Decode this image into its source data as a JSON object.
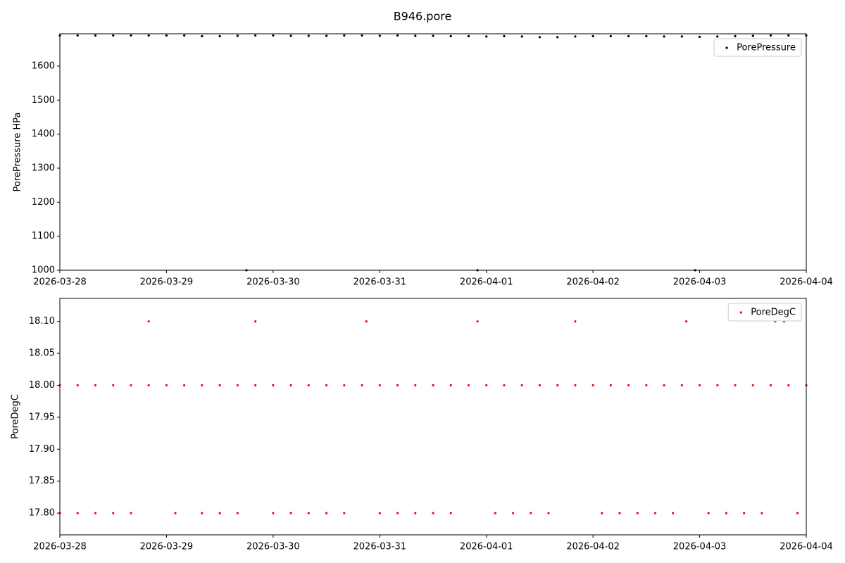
{
  "chart_data": [
    {
      "type": "scatter",
      "title": "B946.pore",
      "ylabel": "PorePressure HPa",
      "legend": "upper right",
      "xlim": [
        "2026-03-28",
        "2026-04-04"
      ],
      "xticks": [
        "2026-03-28",
        "2026-03-29",
        "2026-03-30",
        "2026-03-31",
        "2026-04-01",
        "2026-04-02",
        "2026-04-03",
        "2026-04-04"
      ],
      "ylim": [
        1000,
        1695
      ],
      "yticks": [
        1000,
        1100,
        1200,
        1300,
        1400,
        1500,
        1600
      ],
      "x": [
        "2026-03-28 00:00",
        "2026-03-28 04:00",
        "2026-03-28 08:00",
        "2026-03-28 12:00",
        "2026-03-28 16:00",
        "2026-03-28 20:00",
        "2026-03-29 00:00",
        "2026-03-29 04:00",
        "2026-03-29 08:00",
        "2026-03-29 12:00",
        "2026-03-29 16:00",
        "2026-03-29 20:00",
        "2026-03-30 00:00",
        "2026-03-30 04:00",
        "2026-03-30 08:00",
        "2026-03-30 12:00",
        "2026-03-30 16:00",
        "2026-03-30 20:00",
        "2026-03-31 00:00",
        "2026-03-31 04:00",
        "2026-03-31 08:00",
        "2026-03-31 12:00",
        "2026-03-31 16:00",
        "2026-03-31 20:00",
        "2026-04-01 00:00",
        "2026-04-01 04:00",
        "2026-04-01 08:00",
        "2026-04-01 12:00",
        "2026-04-01 16:00",
        "2026-04-01 20:00",
        "2026-04-02 00:00",
        "2026-04-02 04:00",
        "2026-04-02 08:00",
        "2026-04-02 12:00",
        "2026-04-02 16:00",
        "2026-04-02 20:00",
        "2026-04-03 00:00",
        "2026-04-03 04:00",
        "2026-04-03 08:00",
        "2026-04-03 12:00",
        "2026-04-03 16:00",
        "2026-04-03 20:00",
        "2026-04-04 00:00",
        "2026-03-29 18:00",
        "2026-03-31 22:00",
        "2026-04-02 23:00"
      ],
      "series": [
        {
          "name": "PorePressure",
          "color": "#000000",
          "values": [
            1690,
            1690,
            1690,
            1690,
            1690,
            1690,
            1690,
            1690,
            1688,
            1688,
            1689,
            1690,
            1690,
            1689,
            1689,
            1689,
            1690,
            1690,
            1689,
            1690,
            1689,
            1689,
            1688,
            1688,
            1687,
            1688,
            1687,
            1685,
            1685,
            1687,
            1688,
            1688,
            1688,
            1688,
            1687,
            1687,
            1686,
            1687,
            1688,
            1689,
            1690,
            1690,
            1690,
            1000,
            1000,
            1000
          ]
        }
      ]
    },
    {
      "type": "scatter",
      "ylabel": "PoreDegC",
      "legend": "upper right",
      "xlim": [
        "2026-03-28",
        "2026-04-04"
      ],
      "xticks": [
        "2026-03-28",
        "2026-03-29",
        "2026-03-30",
        "2026-03-31",
        "2026-04-01",
        "2026-04-02",
        "2026-04-03",
        "2026-04-04"
      ],
      "ylim": [
        17.766,
        18.136
      ],
      "yticks": [
        {
          "value": 17.8,
          "label": "17.80"
        },
        {
          "value": 17.85,
          "label": "17.85"
        },
        {
          "value": 17.9,
          "label": "17.90"
        },
        {
          "value": 17.95,
          "label": "17.95"
        },
        {
          "value": 18.0,
          "label": "18.00"
        },
        {
          "value": 18.05,
          "label": "18.05"
        },
        {
          "value": 18.1,
          "label": "18.10"
        }
      ],
      "x": [
        "2026-03-28 00:00",
        "2026-03-28 04:00",
        "2026-03-28 08:00",
        "2026-03-28 12:00",
        "2026-03-28 16:00",
        "2026-03-28 20:00",
        "2026-03-29 00:00",
        "2026-03-29 04:00",
        "2026-03-29 08:00",
        "2026-03-29 12:00",
        "2026-03-29 16:00",
        "2026-03-29 20:00",
        "2026-03-30 00:00",
        "2026-03-30 04:00",
        "2026-03-30 08:00",
        "2026-03-30 12:00",
        "2026-03-30 16:00",
        "2026-03-30 20:00",
        "2026-03-31 00:00",
        "2026-03-31 04:00",
        "2026-03-31 08:00",
        "2026-03-31 12:00",
        "2026-03-31 16:00",
        "2026-03-31 20:00",
        "2026-04-01 00:00",
        "2026-04-01 04:00",
        "2026-04-01 08:00",
        "2026-04-01 12:00",
        "2026-04-01 16:00",
        "2026-04-01 20:00",
        "2026-04-02 00:00",
        "2026-04-02 04:00",
        "2026-04-02 08:00",
        "2026-04-02 12:00",
        "2026-04-02 16:00",
        "2026-04-02 20:00",
        "2026-04-03 00:00",
        "2026-04-03 04:00",
        "2026-04-03 08:00",
        "2026-04-03 12:00",
        "2026-04-03 16:00",
        "2026-04-03 20:00",
        "2026-04-04 00:00",
        "2026-03-28 00:00",
        "2026-03-28 04:00",
        "2026-03-28 08:00",
        "2026-03-28 12:00",
        "2026-03-28 16:00",
        "2026-03-29 02:00",
        "2026-03-29 08:00",
        "2026-03-29 12:00",
        "2026-03-29 16:00",
        "2026-03-30 00:00",
        "2026-03-30 04:00",
        "2026-03-30 08:00",
        "2026-03-30 12:00",
        "2026-03-30 16:00",
        "2026-03-31 00:00",
        "2026-03-31 04:00",
        "2026-03-31 08:00",
        "2026-03-31 12:00",
        "2026-03-31 16:00",
        "2026-04-01 02:00",
        "2026-04-01 06:00",
        "2026-04-01 10:00",
        "2026-04-01 14:00",
        "2026-04-02 02:00",
        "2026-04-02 06:00",
        "2026-04-02 10:00",
        "2026-04-02 14:00",
        "2026-04-02 18:00",
        "2026-04-03 02:00",
        "2026-04-03 06:00",
        "2026-04-03 10:00",
        "2026-04-03 14:00",
        "2026-04-03 22:00",
        "2026-03-28 20:00",
        "2026-03-29 20:00",
        "2026-03-30 21:00",
        "2026-03-31 22:00",
        "2026-04-01 20:00",
        "2026-04-02 21:00",
        "2026-04-03 17:00",
        "2026-04-03 19:00"
      ],
      "series": [
        {
          "name": "PoreDegC",
          "color": "#ff0000",
          "values": [
            18.0,
            18.0,
            18.0,
            18.0,
            18.0,
            18.0,
            18.0,
            18.0,
            18.0,
            18.0,
            18.0,
            18.0,
            18.0,
            18.0,
            18.0,
            18.0,
            18.0,
            18.0,
            18.0,
            18.0,
            18.0,
            18.0,
            18.0,
            18.0,
            18.0,
            18.0,
            18.0,
            18.0,
            18.0,
            18.0,
            18.0,
            18.0,
            18.0,
            18.0,
            18.0,
            18.0,
            18.0,
            18.0,
            18.0,
            18.0,
            18.0,
            18.0,
            18.0,
            17.8,
            17.8,
            17.8,
            17.8,
            17.8,
            17.8,
            17.8,
            17.8,
            17.8,
            17.8,
            17.8,
            17.8,
            17.8,
            17.8,
            17.8,
            17.8,
            17.8,
            17.8,
            17.8,
            17.8,
            17.8,
            17.8,
            17.8,
            17.8,
            17.8,
            17.8,
            17.8,
            17.8,
            17.8,
            17.8,
            17.8,
            17.8,
            17.8,
            18.1,
            18.1,
            18.1,
            18.1,
            18.1,
            18.1,
            18.1,
            18.1
          ]
        }
      ]
    }
  ]
}
